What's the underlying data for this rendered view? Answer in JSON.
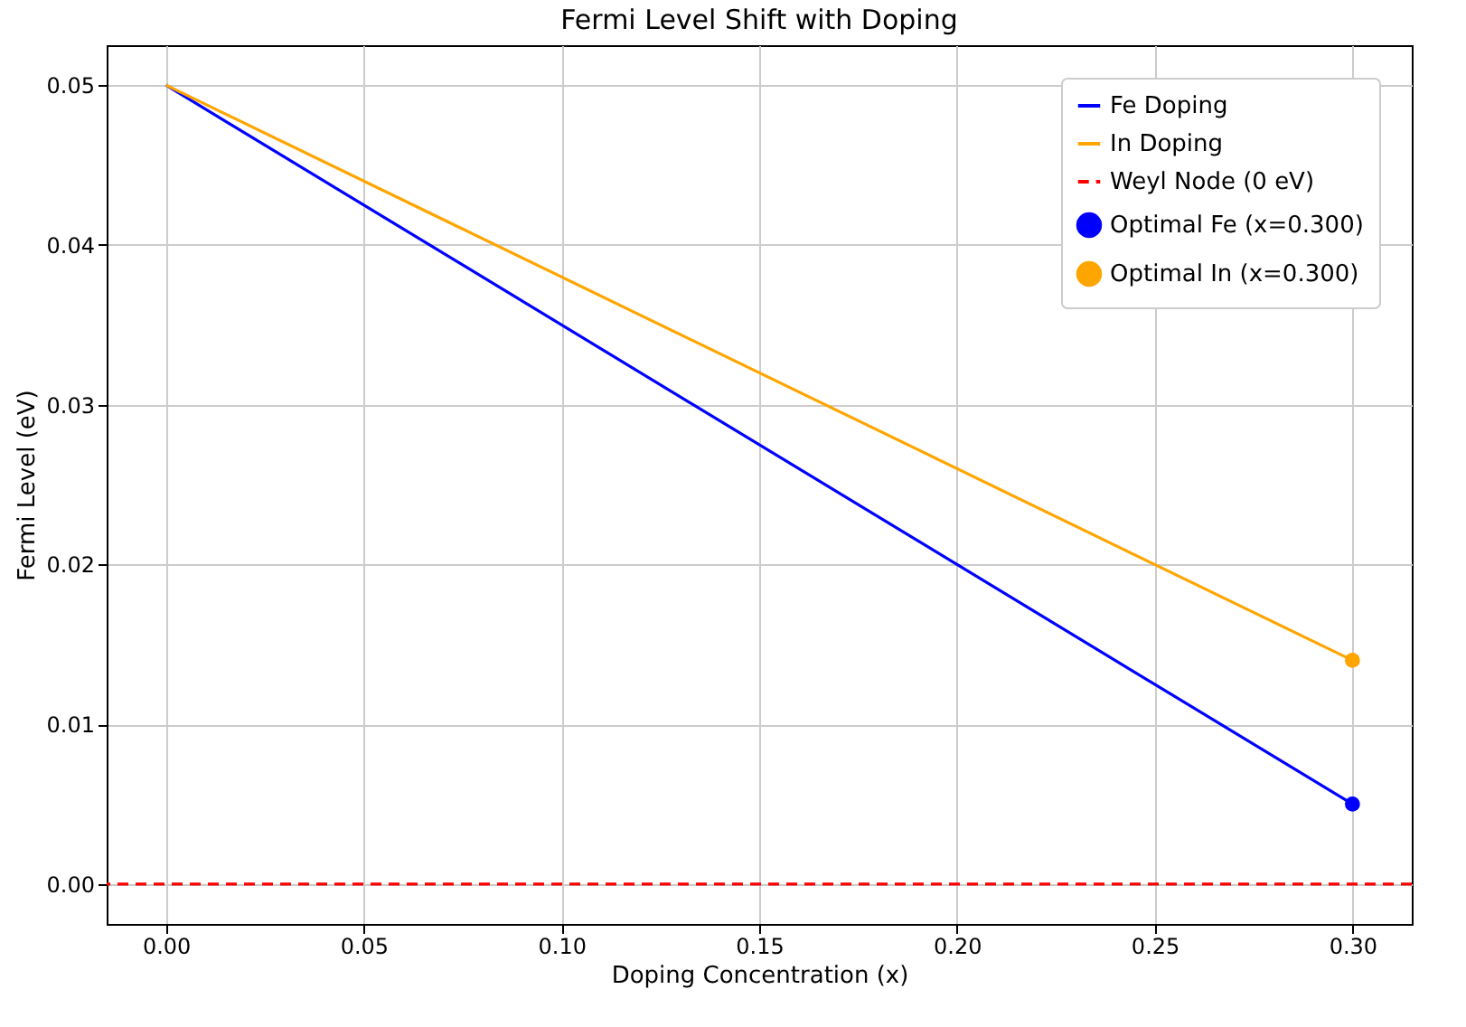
{
  "chart_data": {
    "type": "line",
    "title": "Fermi Level Shift with Doping",
    "xlabel": "Doping Concentration (x)",
    "ylabel": "Fermi Level (eV)",
    "x": [
      0,
      0.3
    ],
    "series": [
      {
        "name": "Fe Doping",
        "color": "#0000ff",
        "values": [
          0.05,
          0.005
        ]
      },
      {
        "name": "In Doping",
        "color": "#ffa500",
        "values": [
          0.05,
          0.014
        ]
      },
      {
        "name": "Optimal Fe (x=0.300)",
        "type": "scatter",
        "color": "#0000ff",
        "x": [
          0.3
        ],
        "values": [
          0.005
        ]
      },
      {
        "name": "Optimal In (x=0.300)",
        "type": "scatter",
        "color": "#ffa500",
        "x": [
          0.3
        ],
        "values": [
          0.014
        ]
      }
    ],
    "ref_lines": [
      {
        "axis": "y",
        "value": 0,
        "label": "Weyl Node (0 eV)",
        "color": "#ff0000",
        "line_style": "dashed"
      }
    ],
    "xlim": [
      -0.015,
      0.315
    ],
    "xticks": [
      {
        "value": 0,
        "label": "0.00"
      },
      {
        "value": 0.05,
        "label": "0.05"
      },
      {
        "value": 0.1,
        "label": "0.10"
      },
      {
        "value": 0.15,
        "label": "0.15"
      },
      {
        "value": 0.2,
        "label": "0.20"
      },
      {
        "value": 0.25,
        "label": "0.25"
      },
      {
        "value": 0.3,
        "label": "0.30"
      }
    ],
    "ylim": [
      -0.0025,
      0.0525
    ],
    "yticks": [
      {
        "value": 0,
        "label": "0.00"
      },
      {
        "value": 0.01,
        "label": "0.01"
      },
      {
        "value": 0.02,
        "label": "0.02"
      },
      {
        "value": 0.03,
        "label": "0.03"
      },
      {
        "value": 0.04,
        "label": "0.04"
      },
      {
        "value": 0.05,
        "label": "0.05"
      }
    ],
    "grid": true,
    "legend": "top right",
    "line_style": "solid"
  }
}
